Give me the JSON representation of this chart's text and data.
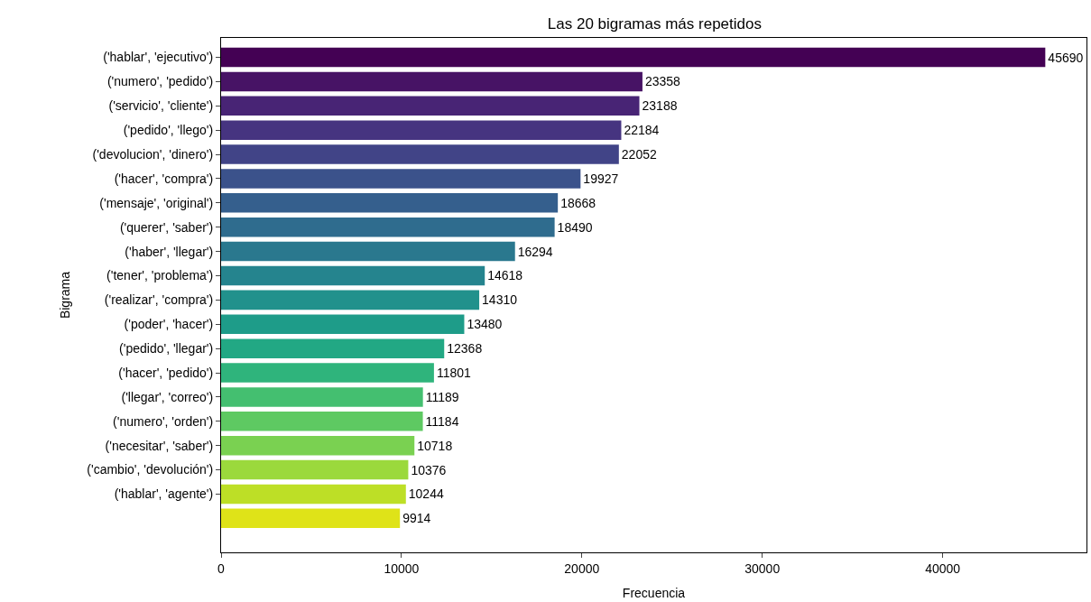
{
  "chart_data": {
    "type": "bar",
    "orientation": "horizontal",
    "title": "Las 20 bigramas más repetidos",
    "xlabel": "Frecuencia",
    "ylabel": "Bigrama",
    "categories": [
      "('hablar', 'ejecutivo')",
      "('numero', 'pedido')",
      "('servicio', 'cliente')",
      "('pedido', 'llego')",
      "('devolucion', 'dinero')",
      "('hacer', 'compra')",
      "('mensaje', 'original')",
      "('querer', 'saber')",
      "('haber', 'llegar')",
      "('tener', 'problema')",
      "('realizar', 'compra')",
      "('poder', 'hacer')",
      "('pedido', 'llegar')",
      "('hacer', 'pedido')",
      "('llegar', 'correo')",
      "('numero', 'orden')",
      "('necesitar', 'saber')",
      "('cambio', 'devolución')",
      "('hablar', 'agente')",
      null
    ],
    "values": [
      45690,
      23358,
      23188,
      22184,
      22052,
      19927,
      18668,
      18490,
      16294,
      14618,
      14310,
      13480,
      12368,
      11801,
      11189,
      11184,
      10718,
      10376,
      10244,
      9914
    ],
    "colors": [
      "#440154",
      "#471365",
      "#482475",
      "#463480",
      "#414487",
      "#3b528b",
      "#355f8d",
      "#2f6c8e",
      "#2a788e",
      "#25848e",
      "#21918c",
      "#1e9c89",
      "#22a884",
      "#2fb47c",
      "#44bf70",
      "#5ec962",
      "#7ad151",
      "#9bd93c",
      "#bddf26",
      "#dfe318"
    ],
    "xlim": [
      0,
      47974
    ],
    "xticks": [
      0,
      10000,
      20000,
      30000,
      40000
    ],
    "data_labels": true,
    "legend": false
  }
}
